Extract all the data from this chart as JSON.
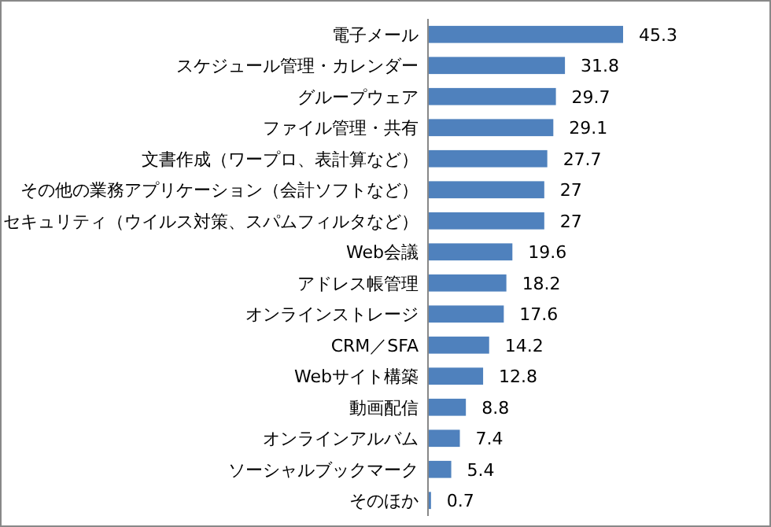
{
  "chart_data": {
    "type": "bar",
    "orientation": "horizontal",
    "data_labels": true,
    "categories": [
      "電子メール",
      "スケジュール管理・カレンダー",
      "グループウェア",
      "ファイル管理・共有",
      "文書作成（ワープロ、表計算など）",
      "その他の業務アプリケーション（会計ソフトなど）",
      "セキュリティ（ウイルス対策、スパムフィルタなど）",
      "Web会議",
      "アドレス帳管理",
      "オンラインストレージ",
      "CRM／SFA",
      "Webサイト構築",
      "動画配信",
      "オンラインアルバム",
      "ソーシャルブックマーク",
      "そのほか"
    ],
    "values": [
      45.3,
      31.8,
      29.7,
      29.1,
      27.7,
      27,
      27,
      19.6,
      18.2,
      17.6,
      14.2,
      12.8,
      8.8,
      7.4,
      5.4,
      0.7
    ],
    "color": "#4f81bd"
  }
}
